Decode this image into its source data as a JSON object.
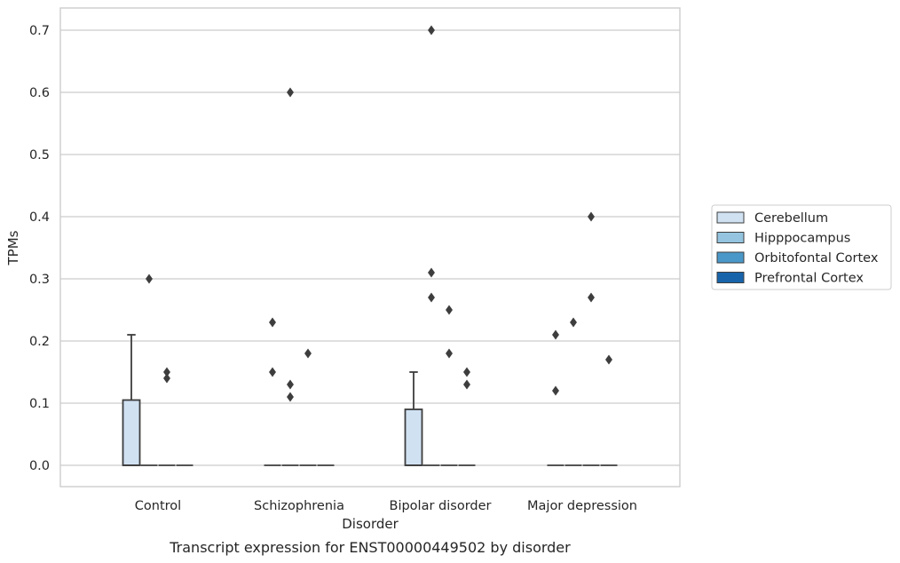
{
  "chart_data": {
    "type": "box",
    "caption": "Transcript expression for ENST00000449502 by disorder",
    "xlabel": "Disorder",
    "ylabel": "TPMs",
    "ylim": [
      -0.035,
      0.735
    ],
    "yticks": [
      0.0,
      0.1,
      0.2,
      0.3,
      0.4,
      0.5,
      0.6,
      0.7
    ],
    "ytick_labels": [
      "0.0",
      "0.1",
      "0.2",
      "0.3",
      "0.4",
      "0.5",
      "0.6",
      "0.7"
    ],
    "grid": "horizontal",
    "legend_position": "right-center",
    "categories": [
      "Control",
      "Schizophrenia",
      "Bipolar disorder",
      "Major depression"
    ],
    "series": [
      {
        "name": "Cerebellum",
        "color": "#d0e1f2",
        "boxes": [
          {
            "q1": 0.0,
            "median": 0.0,
            "q3": 0.105,
            "whisker_low": 0.0,
            "whisker_high": 0.21,
            "outliers": []
          },
          {
            "q1": 0.0,
            "median": 0.0,
            "q3": 0.0,
            "whisker_low": 0.0,
            "whisker_high": 0.0,
            "outliers": [
              0.23,
              0.15
            ]
          },
          {
            "q1": 0.0,
            "median": 0.0,
            "q3": 0.09,
            "whisker_low": 0.0,
            "whisker_high": 0.15,
            "outliers": []
          },
          {
            "q1": 0.0,
            "median": 0.0,
            "q3": 0.0,
            "whisker_low": 0.0,
            "whisker_high": 0.0,
            "outliers": [
              0.21,
              0.12
            ]
          }
        ]
      },
      {
        "name": "Hipppocampus",
        "color": "#94c4df",
        "boxes": [
          {
            "q1": 0.0,
            "median": 0.0,
            "q3": 0.0,
            "whisker_low": 0.0,
            "whisker_high": 0.0,
            "outliers": [
              0.3
            ]
          },
          {
            "q1": 0.0,
            "median": 0.0,
            "q3": 0.0,
            "whisker_low": 0.0,
            "whisker_high": 0.0,
            "outliers": [
              0.6,
              0.13,
              0.11
            ]
          },
          {
            "q1": 0.0,
            "median": 0.0,
            "q3": 0.0,
            "whisker_low": 0.0,
            "whisker_high": 0.0,
            "outliers": [
              0.7,
              0.31,
              0.27
            ]
          },
          {
            "q1": 0.0,
            "median": 0.0,
            "q3": 0.0,
            "whisker_low": 0.0,
            "whisker_high": 0.0,
            "outliers": [
              0.23
            ]
          }
        ]
      },
      {
        "name": "Orbitofontal Cortex",
        "color": "#4a98c9",
        "boxes": [
          {
            "q1": 0.0,
            "median": 0.0,
            "q3": 0.0,
            "whisker_low": 0.0,
            "whisker_high": 0.0,
            "outliers": [
              0.15,
              0.14
            ]
          },
          {
            "q1": 0.0,
            "median": 0.0,
            "q3": 0.0,
            "whisker_low": 0.0,
            "whisker_high": 0.0,
            "outliers": [
              0.18
            ]
          },
          {
            "q1": 0.0,
            "median": 0.0,
            "q3": 0.0,
            "whisker_low": 0.0,
            "whisker_high": 0.0,
            "outliers": [
              0.25,
              0.18
            ]
          },
          {
            "q1": 0.0,
            "median": 0.0,
            "q3": 0.0,
            "whisker_low": 0.0,
            "whisker_high": 0.0,
            "outliers": [
              0.4,
              0.27
            ]
          }
        ]
      },
      {
        "name": "Prefrontal Cortex",
        "color": "#1764ab",
        "boxes": [
          {
            "q1": 0.0,
            "median": 0.0,
            "q3": 0.0,
            "whisker_low": 0.0,
            "whisker_high": 0.0,
            "outliers": []
          },
          {
            "q1": 0.0,
            "median": 0.0,
            "q3": 0.0,
            "whisker_low": 0.0,
            "whisker_high": 0.0,
            "outliers": []
          },
          {
            "q1": 0.0,
            "median": 0.0,
            "q3": 0.0,
            "whisker_low": 0.0,
            "whisker_high": 0.0,
            "outliers": [
              0.15,
              0.13
            ]
          },
          {
            "q1": 0.0,
            "median": 0.0,
            "q3": 0.0,
            "whisker_low": 0.0,
            "whisker_high": 0.0,
            "outliers": [
              0.17
            ]
          }
        ]
      }
    ]
  }
}
